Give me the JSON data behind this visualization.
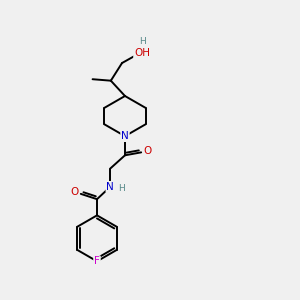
{
  "background_color": "#f0f0f0",
  "bond_color": "#000000",
  "atom_colors": {
    "N": "#0000cc",
    "O": "#cc0000",
    "F": "#cc00cc",
    "H": "#558888",
    "C": "#000000"
  },
  "figsize": [
    3.0,
    3.0
  ],
  "dpi": 100,
  "lw": 1.4,
  "fs": 7.5,
  "fs_small": 6.5
}
